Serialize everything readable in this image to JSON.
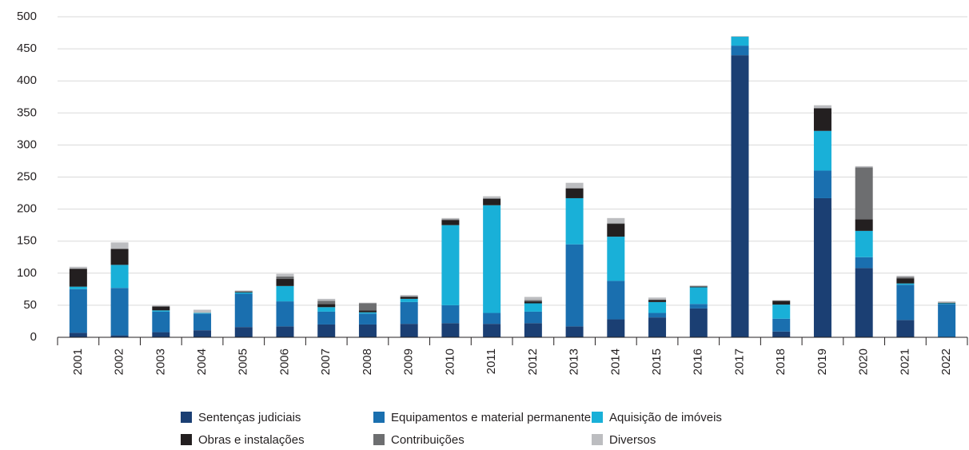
{
  "chart_data": {
    "type": "stacked_bar",
    "categories": [
      "2001",
      "2002",
      "2003",
      "2004",
      "2005",
      "2006",
      "2007",
      "2008",
      "2009",
      "2010",
      "2011",
      "2012",
      "2013",
      "2014",
      "2015",
      "2016",
      "2017",
      "2018",
      "2019",
      "2020",
      "2021",
      "2022"
    ],
    "series": [
      {
        "name": "Sentenças judiciais",
        "color": "#1b3f73",
        "values": [
          7,
          3,
          8,
          11,
          16,
          17,
          20,
          20,
          21,
          22,
          21,
          22,
          17,
          28,
          31,
          45,
          440,
          9,
          217,
          108,
          27,
          0
        ]
      },
      {
        "name": "Equipamentos e material permanente",
        "color": "#1a6faf",
        "values": [
          68,
          74,
          32,
          26,
          52,
          39,
          20,
          17,
          34,
          28,
          17,
          18,
          128,
          60,
          7,
          7,
          15,
          20,
          43,
          17,
          55,
          52
        ]
      },
      {
        "name": "Aquisição de imóveis",
        "color": "#19b0d8",
        "values": [
          4,
          36,
          2,
          1,
          2,
          24,
          7,
          2,
          5,
          125,
          168,
          13,
          72,
          69,
          17,
          26,
          14,
          22,
          62,
          41,
          2,
          1
        ]
      },
      {
        "name": "Obras e instalações",
        "color": "#231f20",
        "values": [
          28,
          25,
          6,
          0,
          1,
          11,
          5,
          3,
          3,
          8,
          10,
          3,
          15,
          20,
          3,
          1,
          0,
          6,
          35,
          18,
          8,
          1
        ]
      },
      {
        "name": "Contribuições",
        "color": "#6d6e70",
        "values": [
          0,
          0,
          0,
          0,
          1,
          4,
          5,
          11,
          1,
          1,
          1,
          2,
          1,
          1,
          1,
          1,
          0,
          0,
          1,
          81,
          2,
          0
        ]
      },
      {
        "name": "Diversos",
        "color": "#bcbdc0",
        "values": [
          3,
          10,
          2,
          5,
          1,
          4,
          3,
          1,
          2,
          2,
          3,
          5,
          8,
          8,
          3,
          1,
          1,
          1,
          4,
          2,
          2,
          2
        ]
      }
    ],
    "ylim": [
      0,
      500
    ],
    "yticks": [
      0,
      50,
      100,
      150,
      200,
      250,
      300,
      350,
      400,
      450,
      500
    ],
    "grid": true
  }
}
